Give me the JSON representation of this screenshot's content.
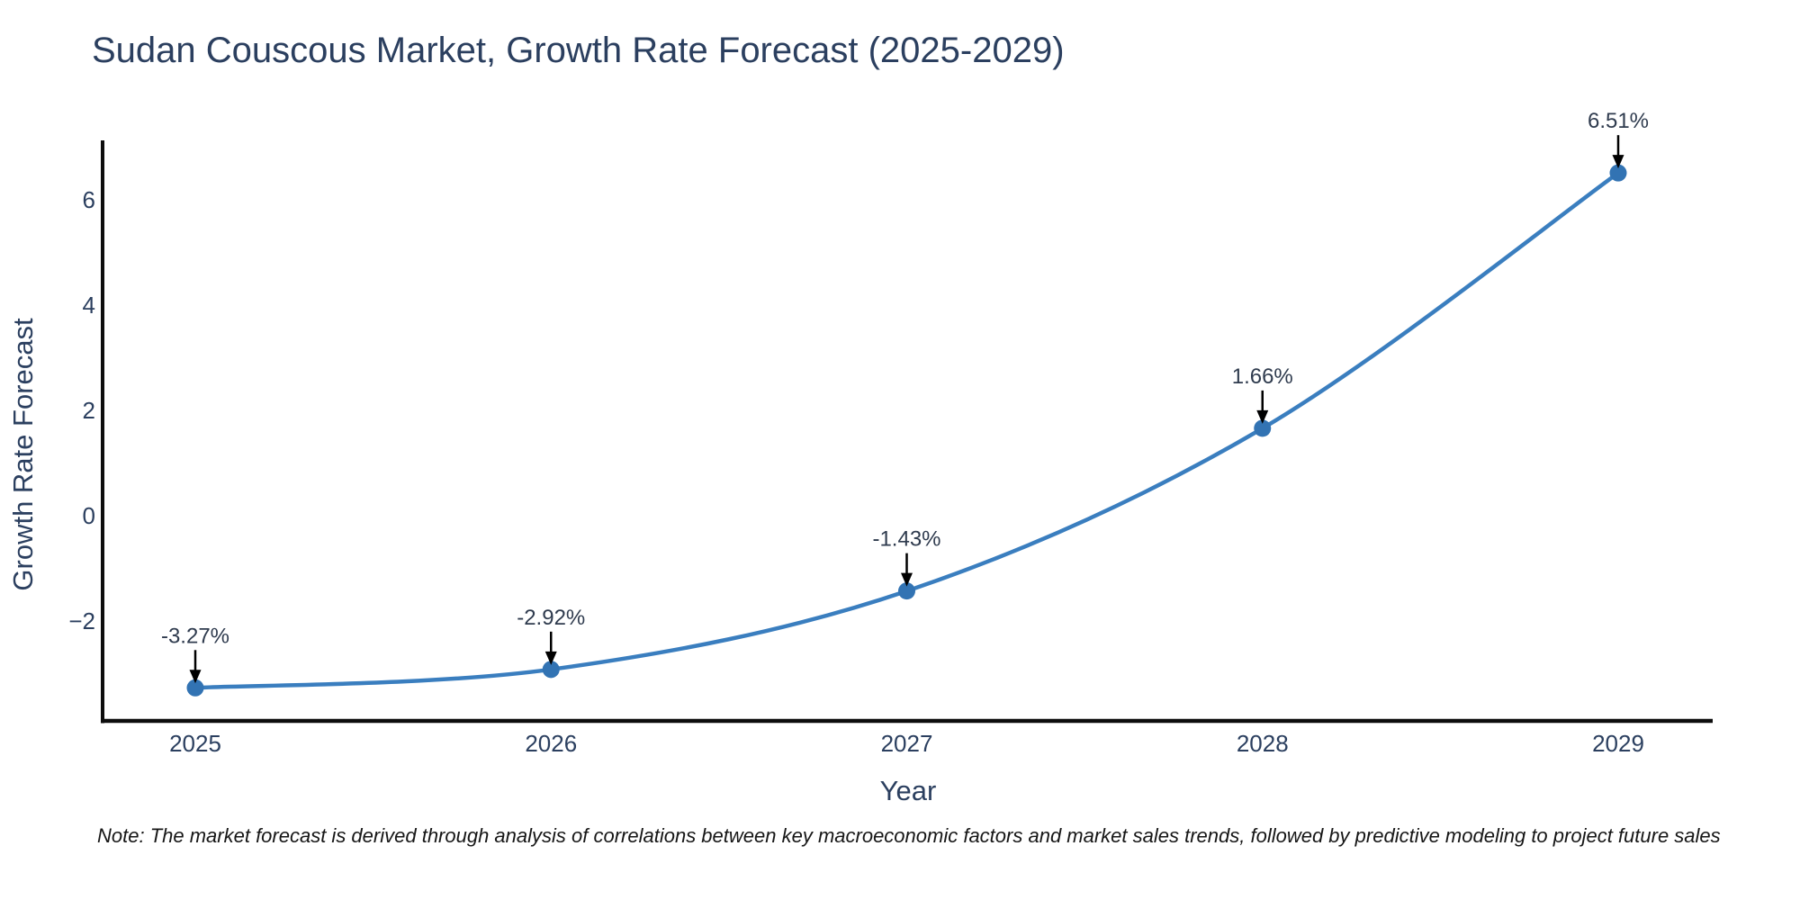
{
  "page": {
    "background": "#ffffff"
  },
  "title": {
    "text": "Sudan Couscous Market, Growth Rate Forecast (2025-2029)"
  },
  "note": {
    "text": "Note: The market forecast is derived through analysis of correlations between key macroeconomic factors and market sales trends, followed by predictive modeling to project future sales"
  },
  "chart_data": {
    "type": "line",
    "title": "Sudan Couscous Market, Growth Rate Forecast (2025-2029)",
    "x": [
      2025,
      2026,
      2027,
      2028,
      2029
    ],
    "series": [
      {
        "name": "Growth Rate Forecast",
        "values": [
          -3.27,
          -2.92,
          -1.43,
          1.66,
          6.51
        ]
      }
    ],
    "point_labels": [
      "-3.27%",
      "-2.92%",
      "-1.43%",
      "1.66%",
      "6.51%"
    ],
    "xlabel": "Year",
    "ylabel": "Growth Rate Forecast",
    "x_tick_labels": [
      "2025",
      "2026",
      "2027",
      "2028",
      "2029"
    ],
    "y_tick_labels": [
      "−2",
      "0",
      "2",
      "4",
      "6"
    ],
    "y_tick_values": [
      -2,
      0,
      2,
      4,
      6
    ],
    "xlim": [
      2024.74,
      2029.27
    ],
    "ylim": [
      -3.88,
      7.09
    ],
    "grid": false,
    "legend_position": "none",
    "line_shape": "spline",
    "marker": "circle",
    "colors": {
      "line": "#3a7ebf",
      "marker": "#3273b3",
      "axis_line": "#0d0d0d",
      "text": "#2b3f5f",
      "annotation_text": "#2f3b4e",
      "arrow": "#000000",
      "note_text": "#161616"
    }
  }
}
